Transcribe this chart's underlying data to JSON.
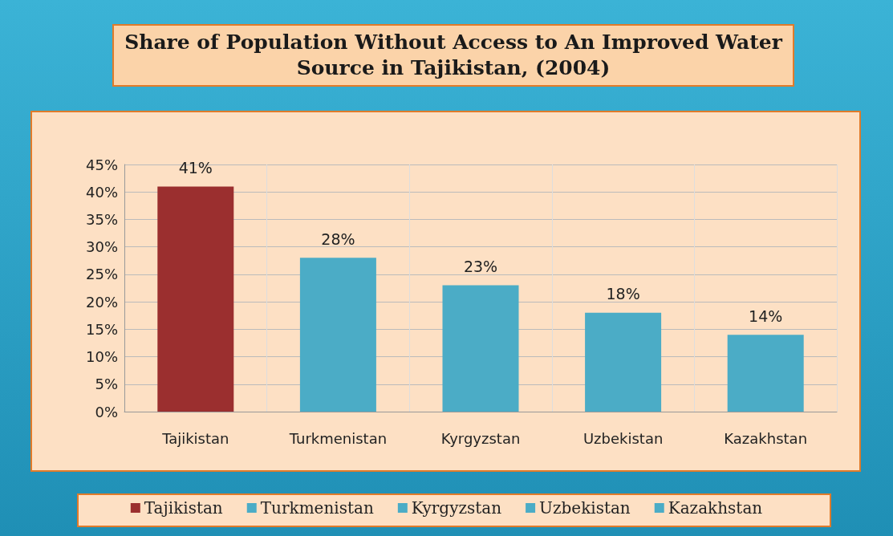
{
  "chart_data": {
    "type": "bar",
    "title": "Share of Population Without Access to An Improved Water Source in Tajikistan, (2004)",
    "categories": [
      "Tajikistan",
      "Turkmenistan",
      "Kyrgyzstan",
      "Uzbekistan",
      "Kazakhstan"
    ],
    "series": [
      {
        "name": "Tajikistan",
        "color": "#9b2f2f",
        "values": [
          41,
          null,
          null,
          null,
          null
        ],
        "value_labels": [
          "41%",
          null,
          null,
          null,
          null
        ]
      },
      {
        "name": "Turkmenistan",
        "color": "#4bacc6",
        "values": [
          null,
          28,
          null,
          null,
          null
        ],
        "value_labels": [
          null,
          "28%",
          null,
          null,
          null
        ]
      },
      {
        "name": "Kyrgyzstan",
        "color": "#4bacc6",
        "values": [
          null,
          null,
          23,
          null,
          null
        ],
        "value_labels": [
          null,
          null,
          "23%",
          null,
          null
        ]
      },
      {
        "name": "Uzbekistan",
        "color": "#4bacc6",
        "values": [
          null,
          null,
          null,
          18,
          null
        ],
        "value_labels": [
          null,
          null,
          null,
          "18%",
          null
        ]
      },
      {
        "name": "Kazakhstan",
        "color": "#4bacc6",
        "values": [
          null,
          null,
          null,
          null,
          14
        ],
        "value_labels": [
          null,
          null,
          null,
          null,
          "14%"
        ]
      }
    ],
    "stacked": true,
    "ylim": [
      0,
      45
    ],
    "yticks": [
      {
        "value": 0,
        "label": "0%"
      },
      {
        "value": 5,
        "label": "5%"
      },
      {
        "value": 10,
        "label": "10%"
      },
      {
        "value": 15,
        "label": "15%"
      },
      {
        "value": 20,
        "label": "20%"
      },
      {
        "value": 25,
        "label": "25%"
      },
      {
        "value": 30,
        "label": "30%"
      },
      {
        "value": 35,
        "label": "35%"
      },
      {
        "value": 40,
        "label": "40%"
      },
      {
        "value": 45,
        "label": "45%"
      }
    ],
    "grid": true,
    "legend": "bottom"
  }
}
